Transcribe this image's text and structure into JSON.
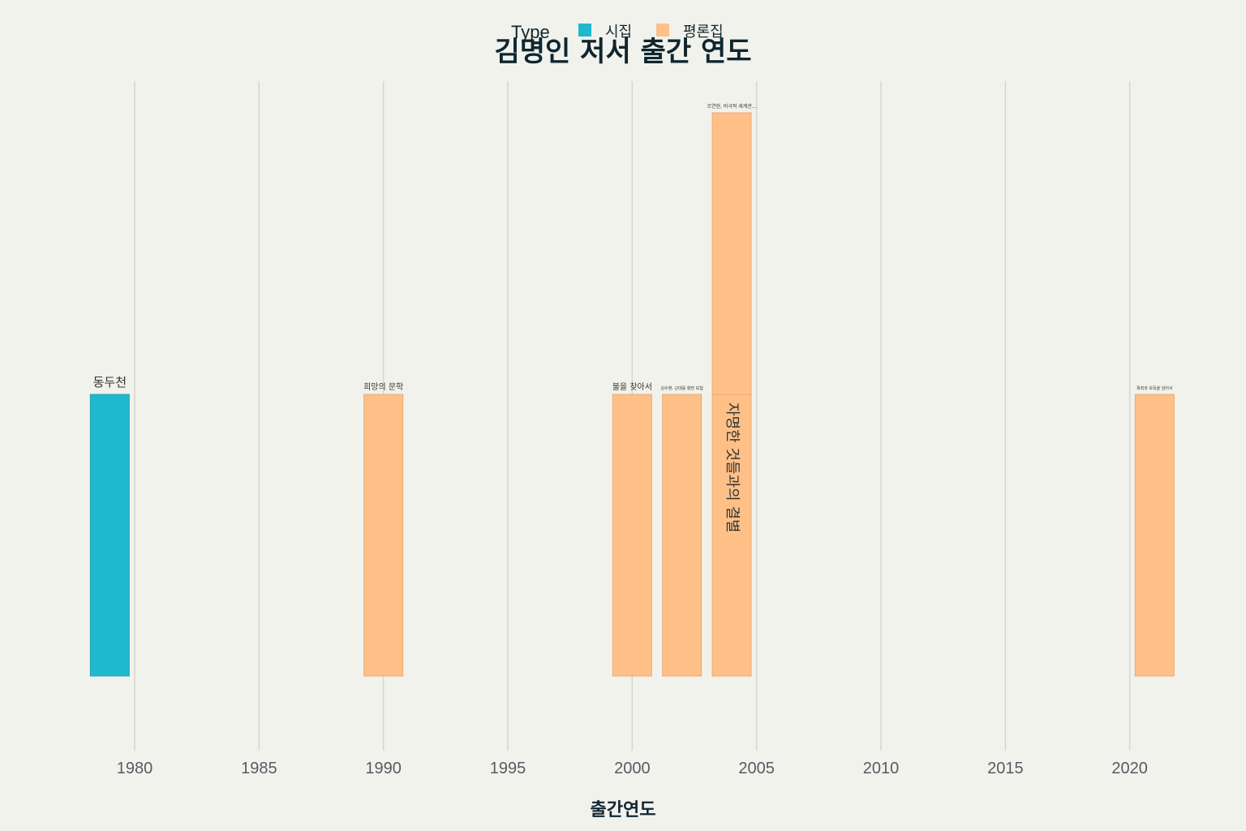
{
  "chart_data": {
    "type": "bar",
    "title": "김명인 저서 출간 연도",
    "xlabel": "출간연도",
    "ylabel": "",
    "xlim": [
      1975.5,
      2023.5
    ],
    "x_ticks": [
      1980,
      1985,
      1990,
      1995,
      2000,
      2005,
      2010,
      2015,
      2020
    ],
    "grid": true,
    "legend": {
      "title": "Type",
      "position": "top",
      "entries": [
        {
          "name": "시집",
          "color": "#20b8cc"
        },
        {
          "name": "평론집",
          "color": "#fec087"
        }
      ]
    },
    "bars": [
      {
        "year": 1979,
        "type": "시집",
        "stack": 0,
        "value": 1,
        "label": "동두천"
      },
      {
        "year": 1990,
        "type": "평론집",
        "stack": 0,
        "value": 1,
        "label": "희망의 문학"
      },
      {
        "year": 2000,
        "type": "평론집",
        "stack": 0,
        "value": 1,
        "label": "불을 찾아서"
      },
      {
        "year": 2002,
        "type": "평론집",
        "stack": 0,
        "value": 1,
        "label": "김수영, 근대를 향한 모험"
      },
      {
        "year": 2004,
        "type": "평론집",
        "stack": 0,
        "value": 1,
        "label": "자명한 것들과의 결별"
      },
      {
        "year": 2004,
        "type": "평론집",
        "stack": 1,
        "value": 1,
        "label": "조연현, 비극적 세계관..."
      },
      {
        "year": 2021,
        "type": "평론집",
        "stack": 0,
        "value": 1,
        "label": "폭력과 모독을 넘어서"
      }
    ]
  }
}
